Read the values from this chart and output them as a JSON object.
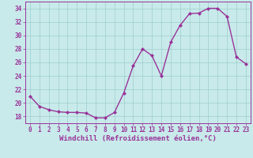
{
  "x": [
    0,
    1,
    2,
    3,
    4,
    5,
    6,
    7,
    8,
    9,
    10,
    11,
    12,
    13,
    14,
    15,
    16,
    17,
    18,
    19,
    20,
    21,
    22,
    23
  ],
  "y": [
    21,
    19.5,
    19,
    18.7,
    18.6,
    18.6,
    18.5,
    17.8,
    17.8,
    18.6,
    21.5,
    25.5,
    28,
    27,
    24,
    29,
    31.5,
    33.2,
    33.3,
    34,
    34,
    32.8,
    26.8,
    25.8
  ],
  "line_color": "#993399",
  "marker": "D",
  "marker_size": 2,
  "bg_color": "#c8eaea",
  "grid_color": "#a0cccc",
  "xlabel": "Windchill (Refroidissement éolien,°C)",
  "xlabel_fontsize": 6.5,
  "tick_fontsize": 5.5,
  "ylim": [
    17,
    35
  ],
  "yticks": [
    18,
    20,
    22,
    24,
    26,
    28,
    30,
    32,
    34
  ],
  "xticks": [
    0,
    1,
    2,
    3,
    4,
    5,
    6,
    7,
    8,
    9,
    10,
    11,
    12,
    13,
    14,
    15,
    16,
    17,
    18,
    19,
    20,
    21,
    22,
    23
  ],
  "linewidth": 1.0
}
